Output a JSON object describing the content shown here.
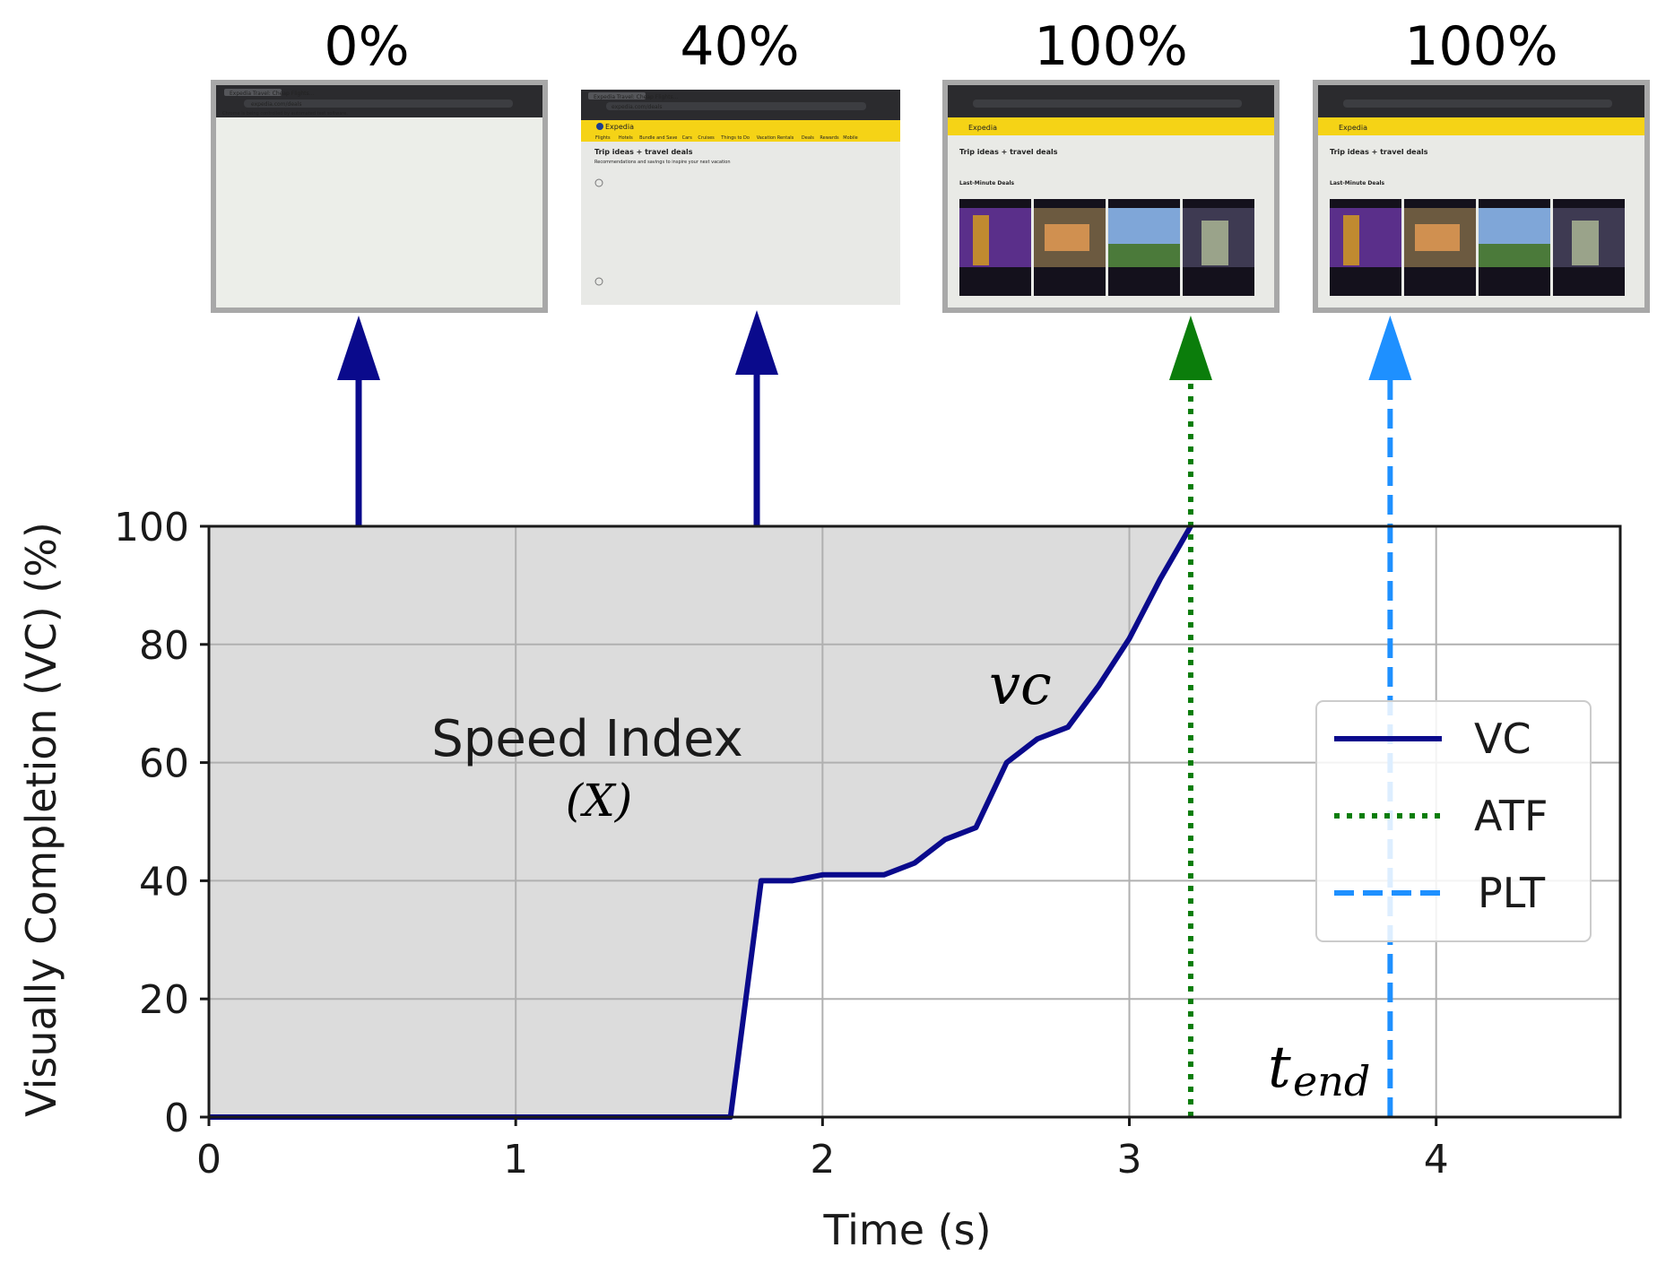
{
  "thumbnails": [
    {
      "percent_label": "0%",
      "state": "blank",
      "arrow_color": "#0a0a8c",
      "tab_title": "Expedia Travel: Cheap Flights...",
      "address": "expedia.com/deals",
      "infobar": "Chrome is being controlled by automated test software."
    },
    {
      "percent_label": "40%",
      "state": "partial",
      "arrow_color": "#0a0a8c",
      "tab_title": "Expedia Travel: Cheap Flights...",
      "address": "expedia.com/deals",
      "brand": "Expedia",
      "heading": "Trip ideas + travel deals",
      "subheading": "Recommendations and savings to inspire your next vacation",
      "nav": [
        "Flights",
        "Hotels",
        "Bundle and Save",
        "Cars",
        "Cruises",
        "Things to Do",
        "Vacation Rentals",
        "Deals",
        "Rewards",
        "Mobile"
      ]
    },
    {
      "percent_label": "100%",
      "state": "complete",
      "arrow_color": "#0b7d0b",
      "brand": "Expedia",
      "heading": "Trip ideas + travel deals",
      "section": "Last-Minute Deals"
    },
    {
      "percent_label": "100%",
      "state": "complete",
      "arrow_color": "#1e90ff",
      "brand": "Expedia",
      "heading": "Trip ideas + travel deals",
      "section": "Last-Minute Deals"
    }
  ],
  "chart_data": {
    "type": "line",
    "xlabel": "Time (s)",
    "ylabel": "Visually Completion (VC) (%)",
    "xlim": [
      0,
      4.6
    ],
    "ylim": [
      0,
      100
    ],
    "xticks": [
      "0",
      "1",
      "2",
      "3",
      "4"
    ],
    "yticks": [
      "0",
      "20",
      "40",
      "60",
      "80",
      "100"
    ],
    "grid": true,
    "legend_position": "right",
    "series": [
      {
        "name": "VC",
        "style": "solid",
        "color": "#0a0a8c",
        "x": [
          0,
          1.7,
          1.8,
          1.9,
          2.0,
          2.1,
          2.2,
          2.3,
          2.4,
          2.5,
          2.6,
          2.7,
          2.8,
          2.9,
          3.0,
          3.1,
          3.2
        ],
        "y": [
          0,
          0,
          40,
          40,
          41,
          41,
          41,
          43,
          47,
          49,
          60,
          64,
          66,
          73,
          81,
          91,
          100
        ]
      },
      {
        "name": "ATF",
        "style": "dotted",
        "color": "#0b7d0b",
        "x": [
          3.2,
          3.2
        ],
        "y": [
          0,
          100
        ]
      },
      {
        "name": "PLT",
        "style": "dashed",
        "color": "#1e90ff",
        "x": [
          3.85,
          3.85
        ],
        "y": [
          0,
          100
        ]
      }
    ],
    "shaded_region_label": "Speed Index",
    "shaded_region_symbol": "(X)",
    "curve_label": "vc",
    "tend_label_base": "t",
    "tend_label_sub": "end",
    "fill_color": "#dcdcdc"
  }
}
